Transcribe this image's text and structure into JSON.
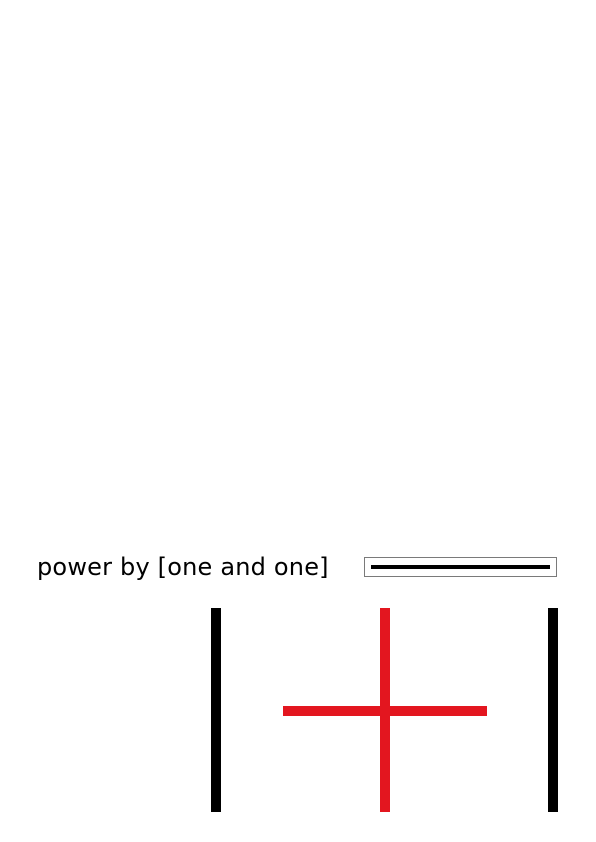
{
  "tagline": "power by [one and one]",
  "colors": {
    "background": "#ffffff",
    "text": "#000000",
    "bar_black": "#000000",
    "cross_red": "#e3161f",
    "box_border": "#7a7a7a"
  },
  "logo": {
    "icons": [
      "left-bar-icon",
      "plus-cross-icon",
      "right-bar-icon"
    ]
  }
}
